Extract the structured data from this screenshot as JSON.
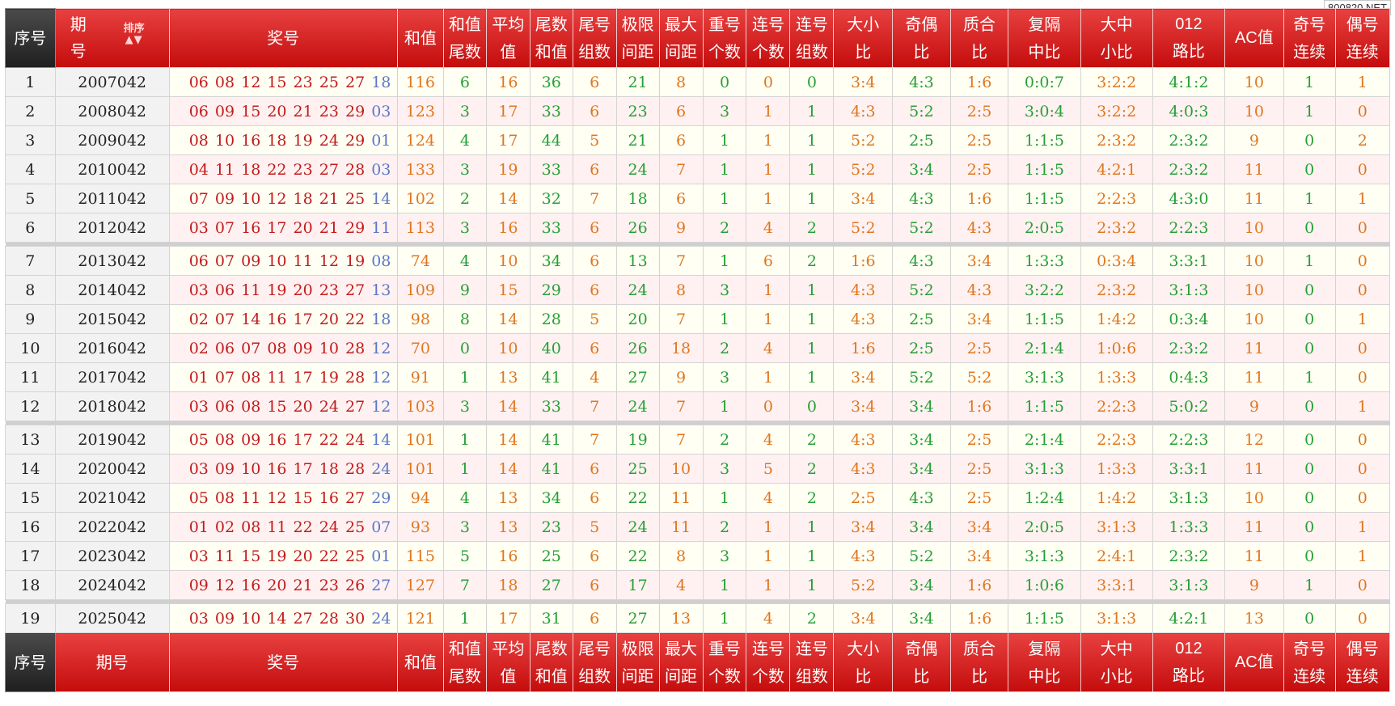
{
  "watermark": "800820.NET",
  "header": {
    "cols": [
      {
        "key": "idx",
        "l1": "序号",
        "l2": "",
        "cls": "dark"
      },
      {
        "key": "issue",
        "l1": "期",
        "l2": "号",
        "cls": "qi"
      },
      {
        "key": "nums",
        "l1": "奖号",
        "l2": ""
      },
      {
        "key": "sum",
        "l1": "和值",
        "l2": ""
      },
      {
        "key": "sum_tail",
        "l1": "和值",
        "l2": "尾数"
      },
      {
        "key": "avg",
        "l1": "平均",
        "l2": "值"
      },
      {
        "key": "tail_sum",
        "l1": "尾数",
        "l2": "和值"
      },
      {
        "key": "tail_groups",
        "l1": "尾号",
        "l2": "组数"
      },
      {
        "key": "span",
        "l1": "极限",
        "l2": "间距"
      },
      {
        "key": "max_gap",
        "l1": "最大",
        "l2": "间距"
      },
      {
        "key": "repeat",
        "l1": "重号",
        "l2": "个数"
      },
      {
        "key": "consec",
        "l1": "连号",
        "l2": "个数"
      },
      {
        "key": "consec_groups",
        "l1": "连号",
        "l2": "组数"
      },
      {
        "key": "big_small",
        "l1": "大小",
        "l2": "比"
      },
      {
        "key": "odd_even",
        "l1": "奇偶",
        "l2": "比"
      },
      {
        "key": "prime",
        "l1": "质合",
        "l2": "比"
      },
      {
        "key": "repeat_gap",
        "l1": "复隔",
        "l2": "中比"
      },
      {
        "key": "bms",
        "l1": "大中",
        "l2": "小比"
      },
      {
        "key": "road012",
        "l1": "012",
        "l2": "路比"
      },
      {
        "key": "ac",
        "l1": "AC值",
        "l2": ""
      },
      {
        "key": "odd_run",
        "l1": "奇号",
        "l2": "连续"
      },
      {
        "key": "even_run",
        "l1": "偶号",
        "l2": "连续"
      }
    ],
    "sort_label": "排序",
    "sort_arrows": "▲▼"
  },
  "footer": {
    "idx": "序号",
    "issue": "期号",
    "nums": "奖号"
  },
  "rows": [
    {
      "i": "1",
      "issue": "2007042",
      "n": "06 08 12 15 23 25 27",
      "b": "18",
      "v": [
        "116",
        "6",
        "16",
        "36",
        "6",
        "21",
        "8",
        "0",
        "0",
        "0",
        "3:4",
        "4:3",
        "1:6",
        "0:0:7",
        "3:2:2",
        "4:1:2",
        "10",
        "1",
        "1"
      ]
    },
    {
      "i": "2",
      "issue": "2008042",
      "n": "06 09 15 20 21 23 29",
      "b": "03",
      "v": [
        "123",
        "3",
        "17",
        "33",
        "6",
        "23",
        "6",
        "3",
        "1",
        "1",
        "4:3",
        "5:2",
        "2:5",
        "3:0:4",
        "3:2:2",
        "4:0:3",
        "10",
        "1",
        "0"
      ]
    },
    {
      "i": "3",
      "issue": "2009042",
      "n": "08 10 16 18 19 24 29",
      "b": "01",
      "v": [
        "124",
        "4",
        "17",
        "44",
        "5",
        "21",
        "6",
        "1",
        "1",
        "1",
        "5:2",
        "2:5",
        "2:5",
        "1:1:5",
        "2:3:2",
        "2:3:2",
        "9",
        "0",
        "2"
      ]
    },
    {
      "i": "4",
      "issue": "2010042",
      "n": "04 11 18 22 23 27 28",
      "b": "03",
      "v": [
        "133",
        "3",
        "19",
        "33",
        "6",
        "24",
        "7",
        "1",
        "1",
        "1",
        "5:2",
        "3:4",
        "2:5",
        "1:1:5",
        "4:2:1",
        "2:3:2",
        "11",
        "0",
        "0"
      ]
    },
    {
      "i": "5",
      "issue": "2011042",
      "n": "07 09 10 12 18 21 25",
      "b": "14",
      "v": [
        "102",
        "2",
        "14",
        "32",
        "7",
        "18",
        "6",
        "1",
        "1",
        "1",
        "3:4",
        "4:3",
        "1:6",
        "1:1:5",
        "2:2:3",
        "4:3:0",
        "11",
        "1",
        "1"
      ]
    },
    {
      "i": "6",
      "issue": "2012042",
      "n": "03 07 16 17 20 21 29",
      "b": "11",
      "v": [
        "113",
        "3",
        "16",
        "33",
        "6",
        "26",
        "9",
        "2",
        "4",
        "2",
        "5:2",
        "5:2",
        "4:3",
        "2:0:5",
        "2:3:2",
        "2:2:3",
        "10",
        "0",
        "0"
      ]
    },
    {
      "i": "7",
      "issue": "2013042",
      "n": "06 07 09 10 11 12 19",
      "b": "08",
      "v": [
        "74",
        "4",
        "10",
        "34",
        "6",
        "13",
        "7",
        "1",
        "6",
        "2",
        "1:6",
        "4:3",
        "3:4",
        "1:3:3",
        "0:3:4",
        "3:3:1",
        "10",
        "1",
        "0"
      ]
    },
    {
      "i": "8",
      "issue": "2014042",
      "n": "03 06 11 19 20 23 27",
      "b": "13",
      "v": [
        "109",
        "9",
        "15",
        "29",
        "6",
        "24",
        "8",
        "3",
        "1",
        "1",
        "4:3",
        "5:2",
        "4:3",
        "3:2:2",
        "2:3:2",
        "3:1:3",
        "10",
        "0",
        "0"
      ]
    },
    {
      "i": "9",
      "issue": "2015042",
      "n": "02 07 14 16 17 20 22",
      "b": "18",
      "v": [
        "98",
        "8",
        "14",
        "28",
        "5",
        "20",
        "7",
        "1",
        "1",
        "1",
        "4:3",
        "2:5",
        "3:4",
        "1:1:5",
        "1:4:2",
        "0:3:4",
        "10",
        "0",
        "1"
      ]
    },
    {
      "i": "10",
      "issue": "2016042",
      "n": "02 06 07 08 09 10 28",
      "b": "12",
      "v": [
        "70",
        "0",
        "10",
        "40",
        "6",
        "26",
        "18",
        "2",
        "4",
        "1",
        "1:6",
        "2:5",
        "2:5",
        "2:1:4",
        "1:0:6",
        "2:3:2",
        "11",
        "0",
        "0"
      ]
    },
    {
      "i": "11",
      "issue": "2017042",
      "n": "01 07 08 11 17 19 28",
      "b": "12",
      "v": [
        "91",
        "1",
        "13",
        "41",
        "4",
        "27",
        "9",
        "3",
        "1",
        "1",
        "3:4",
        "5:2",
        "5:2",
        "3:1:3",
        "1:3:3",
        "0:4:3",
        "11",
        "1",
        "0"
      ]
    },
    {
      "i": "12",
      "issue": "2018042",
      "n": "03 06 08 15 20 24 27",
      "b": "12",
      "v": [
        "103",
        "3",
        "14",
        "33",
        "7",
        "24",
        "7",
        "1",
        "0",
        "0",
        "3:4",
        "3:4",
        "1:6",
        "1:1:5",
        "2:2:3",
        "5:0:2",
        "9",
        "0",
        "1"
      ]
    },
    {
      "i": "13",
      "issue": "2019042",
      "n": "05 08 09 16 17 22 24",
      "b": "14",
      "v": [
        "101",
        "1",
        "14",
        "41",
        "7",
        "19",
        "7",
        "2",
        "4",
        "2",
        "4:3",
        "3:4",
        "2:5",
        "2:1:4",
        "2:2:3",
        "2:2:3",
        "12",
        "0",
        "0"
      ]
    },
    {
      "i": "14",
      "issue": "2020042",
      "n": "03 09 10 16 17 18 28",
      "b": "24",
      "v": [
        "101",
        "1",
        "14",
        "41",
        "6",
        "25",
        "10",
        "3",
        "5",
        "2",
        "4:3",
        "3:4",
        "2:5",
        "3:1:3",
        "1:3:3",
        "3:3:1",
        "11",
        "0",
        "0"
      ]
    },
    {
      "i": "15",
      "issue": "2021042",
      "n": "05 08 11 12 15 16 27",
      "b": "29",
      "v": [
        "94",
        "4",
        "13",
        "34",
        "6",
        "22",
        "11",
        "1",
        "4",
        "2",
        "2:5",
        "4:3",
        "2:5",
        "1:2:4",
        "1:4:2",
        "3:1:3",
        "10",
        "0",
        "0"
      ]
    },
    {
      "i": "16",
      "issue": "2022042",
      "n": "01 02 08 11 22 24 25",
      "b": "07",
      "v": [
        "93",
        "3",
        "13",
        "23",
        "5",
        "24",
        "11",
        "2",
        "1",
        "1",
        "3:4",
        "3:4",
        "3:4",
        "2:0:5",
        "3:1:3",
        "1:3:3",
        "11",
        "0",
        "1"
      ]
    },
    {
      "i": "17",
      "issue": "2023042",
      "n": "03 11 15 19 20 22 25",
      "b": "01",
      "v": [
        "115",
        "5",
        "16",
        "25",
        "6",
        "22",
        "8",
        "3",
        "1",
        "1",
        "4:3",
        "5:2",
        "3:4",
        "3:1:3",
        "2:4:1",
        "2:3:2",
        "11",
        "0",
        "1"
      ]
    },
    {
      "i": "18",
      "issue": "2024042",
      "n": "09 12 16 20 21 23 26",
      "b": "27",
      "v": [
        "127",
        "7",
        "18",
        "27",
        "6",
        "17",
        "4",
        "1",
        "1",
        "1",
        "5:2",
        "3:4",
        "1:6",
        "1:0:6",
        "3:3:1",
        "3:1:3",
        "9",
        "1",
        "0"
      ]
    },
    {
      "i": "19",
      "issue": "2025042",
      "n": "03 09 10 14 27 28 30",
      "b": "24",
      "v": [
        "121",
        "1",
        "17",
        "31",
        "6",
        "27",
        "13",
        "1",
        "4",
        "2",
        "3:4",
        "3:4",
        "1:6",
        "1:1:5",
        "3:1:3",
        "4:2:1",
        "13",
        "0",
        "0"
      ]
    }
  ],
  "colors": {
    "orange": "#e0771f",
    "green": "#26a036",
    "red": "#d21a1a",
    "blue": "#5a78c8",
    "header_red": "#c40c0c"
  }
}
